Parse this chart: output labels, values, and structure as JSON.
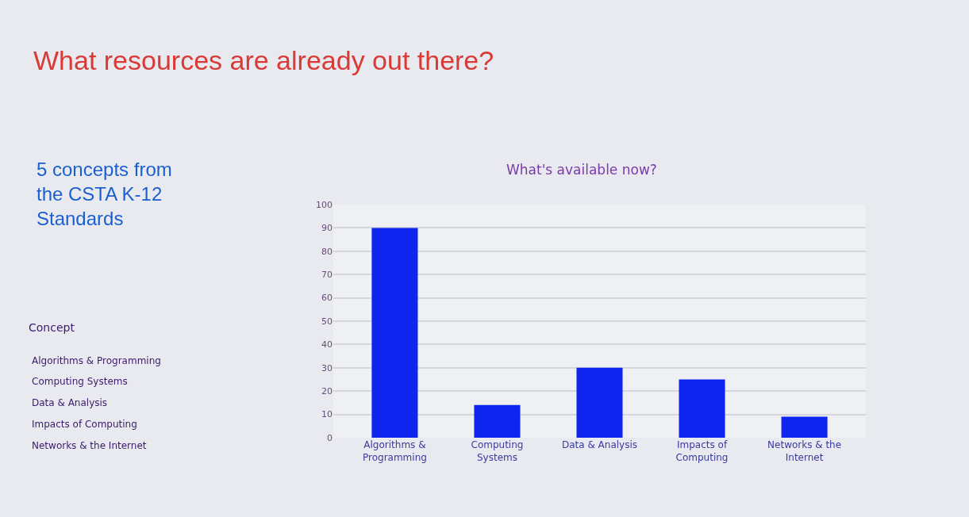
{
  "chart_data": {
    "type": "bar",
    "title": "What resources are already out there?",
    "subtitle": "What's available now?",
    "categories": [
      "Algorithms & Programming",
      "Computing Systems",
      "Data & Analysis",
      "Impacts of Computing",
      "Networks & the Internet"
    ],
    "values": [
      90,
      14,
      30,
      25,
      9
    ],
    "color": "#1024f0",
    "ylim": [
      0,
      100
    ],
    "yticks": [
      0,
      10,
      20,
      30,
      40,
      50,
      60,
      70,
      80,
      90,
      100
    ],
    "grid": "y",
    "annotations": [
      "5 concepts from\nthe CSTA K-12\nStandards",
      "Concept",
      "Algorithms & Programming",
      "Computing Systems",
      "Data & Analysis",
      "Impacts of Computing",
      "Networks & the Internet"
    ]
  }
}
